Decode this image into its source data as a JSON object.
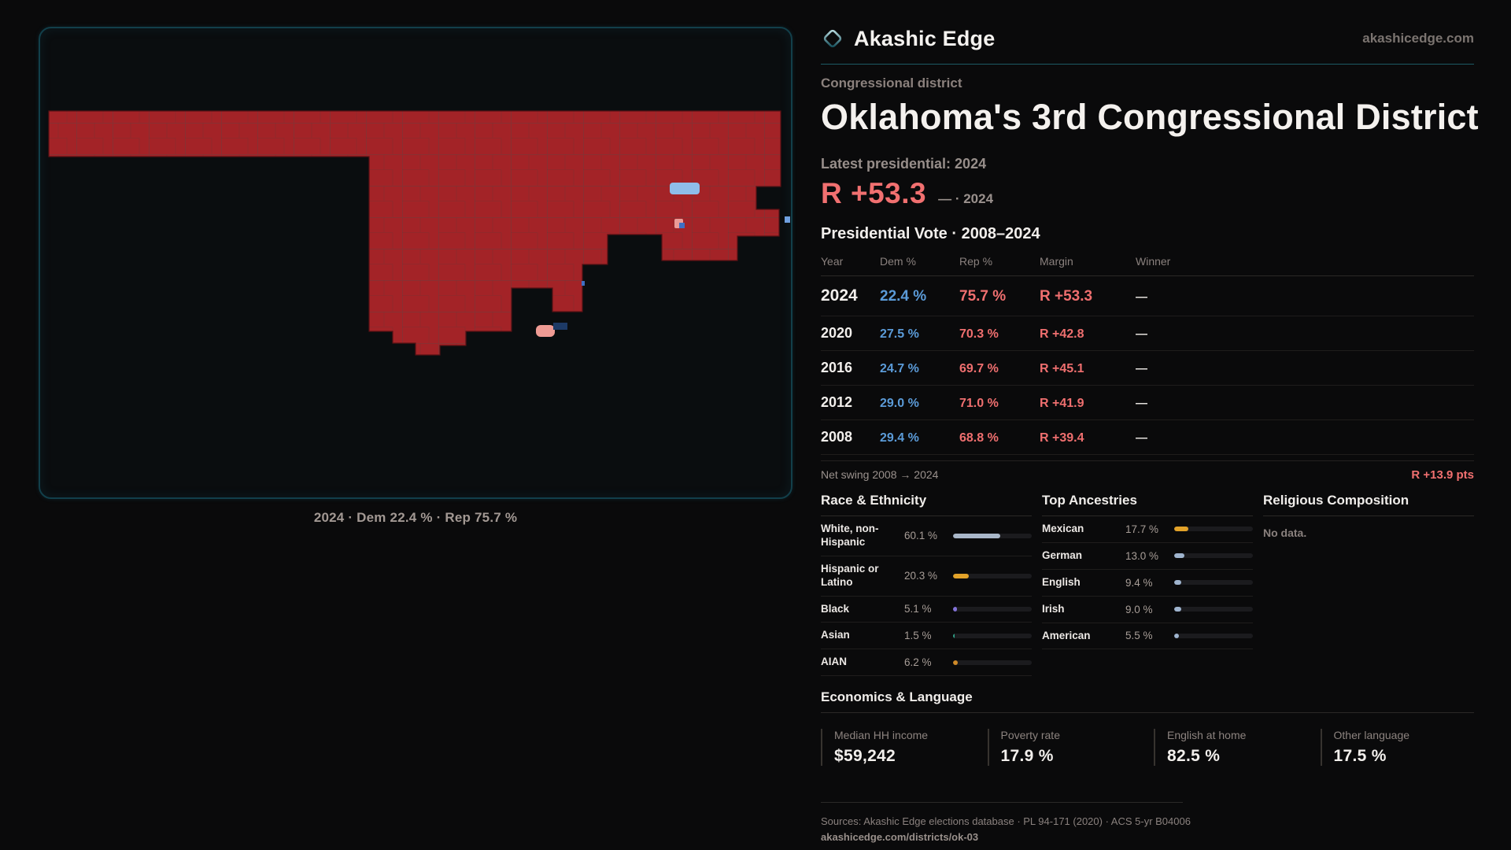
{
  "brand": {
    "name": "Akashic Edge",
    "domain": "akashicedge.com",
    "logo_icon": "diamond-outline"
  },
  "page": {
    "kicker": "Congressional district",
    "title": "Oklahoma's 3rd Congressional District",
    "latest_label": "Latest presidential: 2024",
    "margin_value": "R +53.3",
    "margin_note": "— · 2024"
  },
  "map": {
    "caption": "2024 · Dem 22.4 % · Rep 75.7 %"
  },
  "vote_table": {
    "title": "Presidential Vote · 2008–2024",
    "columns": {
      "year": "Year",
      "dem": "Dem %",
      "rep": "Rep %",
      "margin": "Margin",
      "winner": "Winner"
    },
    "rows": [
      {
        "year": "2024",
        "dem": "22.4 %",
        "rep": "75.7 %",
        "margin": "R +53.3",
        "winner": "—"
      },
      {
        "year": "2020",
        "dem": "27.5 %",
        "rep": "70.3 %",
        "margin": "R +42.8",
        "winner": "—"
      },
      {
        "year": "2016",
        "dem": "24.7 %",
        "rep": "69.7 %",
        "margin": "R +45.1",
        "winner": "—"
      },
      {
        "year": "2012",
        "dem": "29.0 %",
        "rep": "71.0 %",
        "margin": "R +41.9",
        "winner": "—"
      },
      {
        "year": "2008",
        "dem": "29.4 %",
        "rep": "68.8 %",
        "margin": "R +39.4",
        "winner": "—"
      }
    ],
    "net_swing_label": "Net swing 2008 → 2024",
    "net_swing_value": "R +13.9 pts"
  },
  "race": {
    "title": "Race & Ethnicity",
    "rows": [
      {
        "label": "White, non-Hispanic",
        "value": "60.1 %",
        "pct": 60.1,
        "color": "#a9b7c9"
      },
      {
        "label": "Hispanic or Latino",
        "value": "20.3 %",
        "pct": 20.3,
        "color": "#e2a229"
      },
      {
        "label": "Black",
        "value": "5.1 %",
        "pct": 5.1,
        "color": "#8272d8"
      },
      {
        "label": "Asian",
        "value": "1.5 %",
        "pct": 1.5,
        "color": "#2f9d85"
      },
      {
        "label": "AIAN",
        "value": "6.2 %",
        "pct": 6.2,
        "color": "#d08a28"
      }
    ]
  },
  "ancestries": {
    "title": "Top Ancestries",
    "rows": [
      {
        "label": "Mexican",
        "value": "17.7 %",
        "pct": 17.7,
        "color": "#e2a229"
      },
      {
        "label": "German",
        "value": "13.0 %",
        "pct": 13.0,
        "color": "#9fb4ce"
      },
      {
        "label": "English",
        "value": "9.4 %",
        "pct": 9.4,
        "color": "#9fb4ce"
      },
      {
        "label": "Irish",
        "value": "9.0 %",
        "pct": 9.0,
        "color": "#9fb4ce"
      },
      {
        "label": "American",
        "value": "5.5 %",
        "pct": 5.5,
        "color": "#9fb4ce"
      }
    ]
  },
  "religion": {
    "title": "Religious Composition",
    "empty": "No data."
  },
  "economics": {
    "title": "Economics & Language",
    "stats": [
      {
        "label": "Median HH income",
        "value": "$59,242"
      },
      {
        "label": "Poverty rate",
        "value": "17.9 %"
      },
      {
        "label": "English at home",
        "value": "82.5 %"
      },
      {
        "label": "Other language",
        "value": "17.5 %"
      }
    ]
  },
  "footer": {
    "sources": "Sources: Akashic Edge elections database · PL 94-171 (2020) · ACS 5-yr B04006",
    "permalink": "akashicedge.com/districts/ok-03"
  },
  "colors": {
    "dem_blue": "#5b9bd8",
    "rep_red": "#ef6f6f",
    "accent_teal": "#1d5a64",
    "map_fill": "#a32327",
    "map_border": "#123f4a"
  }
}
